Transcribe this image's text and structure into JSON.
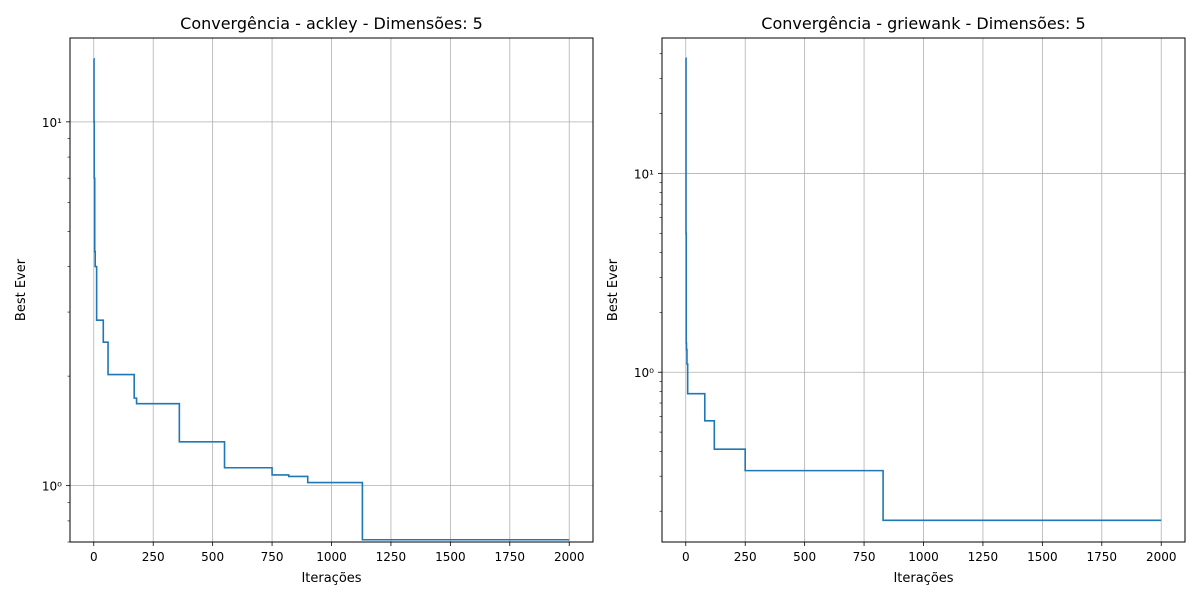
{
  "chart_data": [
    {
      "type": "line",
      "title": "Convergência - ackley - Dimensões: 5",
      "xlabel": "Iterações",
      "ylabel": "Best Ever",
      "x_scale": "linear",
      "y_scale": "log",
      "xlim": [
        -100,
        2100
      ],
      "ylim": [
        0.7,
        17.0
      ],
      "x_ticks": [
        0,
        250,
        500,
        750,
        1000,
        1250,
        1500,
        1750,
        2000
      ],
      "x_tick_labels": [
        "0",
        "250",
        "500",
        "750",
        "1000",
        "1250",
        "1500",
        "1750",
        "2000"
      ],
      "y_ticks": [
        1,
        10
      ],
      "y_tick_labels": [
        "10⁰",
        "10¹"
      ],
      "grid": true,
      "line_color": "#1f77b4",
      "series": [
        {
          "step": true,
          "points": [
            [
              0,
              14.9
            ],
            [
              1,
              10.0
            ],
            [
              2,
              7.0
            ],
            [
              4,
              4.4
            ],
            [
              6,
              4.0
            ],
            [
              12,
              2.85
            ],
            [
              40,
              2.48
            ],
            [
              60,
              2.02
            ],
            [
              170,
              1.74
            ],
            [
              180,
              1.68
            ],
            [
              360,
              1.32
            ],
            [
              550,
              1.12
            ],
            [
              750,
              1.07
            ],
            [
              820,
              1.06
            ],
            [
              900,
              1.02
            ],
            [
              1130,
              0.71
            ],
            [
              2000,
              0.71
            ]
          ]
        }
      ]
    },
    {
      "type": "line",
      "title": "Convergência - griewank - Dimensões: 5",
      "xlabel": "Iterações",
      "ylabel": "Best Ever",
      "x_scale": "linear",
      "y_scale": "log",
      "xlim": [
        -100,
        2100
      ],
      "ylim": [
        0.14,
        48.0
      ],
      "x_ticks": [
        0,
        250,
        500,
        750,
        1000,
        1250,
        1500,
        1750,
        2000
      ],
      "x_tick_labels": [
        "0",
        "250",
        "500",
        "750",
        "1000",
        "1250",
        "1500",
        "1750",
        "2000"
      ],
      "y_ticks": [
        1,
        10
      ],
      "y_tick_labels": [
        "10⁰",
        "10¹"
      ],
      "grid": true,
      "line_color": "#1f77b4",
      "series": [
        {
          "step": true,
          "points": [
            [
              0,
              38.0
            ],
            [
              1,
              5.0
            ],
            [
              2,
              1.4
            ],
            [
              3,
              1.3
            ],
            [
              5,
              1.1
            ],
            [
              8,
              0.78
            ],
            [
              80,
              0.57
            ],
            [
              120,
              0.41
            ],
            [
              250,
              0.32
            ],
            [
              830,
              0.18
            ],
            [
              2000,
              0.18
            ]
          ]
        }
      ]
    }
  ]
}
